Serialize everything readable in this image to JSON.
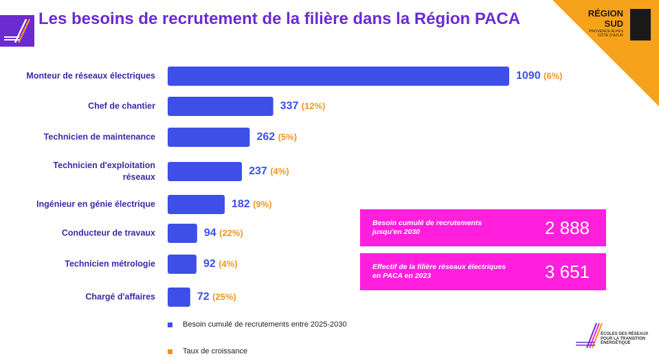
{
  "page": {
    "title": "Les besoins de recrutement de la filière dans la Région PACA"
  },
  "brand_right": {
    "line1": "RÉGION",
    "line2": "SUD",
    "sub": "PROVENCE ALPES CÔTE D'AZUR"
  },
  "stats": [
    {
      "label": "Besoin cumulé de recrutements jusqu'en 2030",
      "value": "2 888"
    },
    {
      "label": "Effectif de la filière réseaux électriques en PACA  en 2023",
      "value": "3 651"
    }
  ],
  "legend": {
    "series_label": "Besoin cumulé de recrutements entre 2025-2030",
    "growth_label": "Taux de croissance"
  },
  "footer_logo": {
    "text": "ÉCOLES DES RÉSEAUX POUR LA TRANSITION ÉNERGÉTIQUE"
  },
  "colors": {
    "title": "#6b2bd0",
    "bar": "#3d4fe6",
    "growth": "#f0961e",
    "stat_box": "#ff1fdc",
    "corner": "#f7a21b"
  },
  "chart_data": {
    "type": "bar",
    "orientation": "horizontal",
    "categories": [
      "Monteur de réseaux électriques",
      "Chef de chantier",
      "Technicien de maintenance",
      "Technicien d'exploitation réseaux",
      "Ingénieur en génie électrique",
      "Conducteur de travaux",
      "Technicien métrologie",
      "Chargé d'affaires"
    ],
    "values": [
      1090,
      337,
      262,
      237,
      182,
      94,
      92,
      72
    ],
    "value_labels": [
      "1090",
      "337",
      "262",
      "237",
      "182",
      "94",
      "92",
      "72"
    ],
    "growth_labels": [
      "(6%)",
      "(12%)",
      "(5%)",
      "(4%)",
      "(9%)",
      "(22%)",
      "(4%)",
      "(25%)"
    ],
    "growth_rates": [
      6,
      12,
      5,
      4,
      9,
      22,
      4,
      25
    ],
    "legend_position": "bottom-left",
    "grid": false
  }
}
